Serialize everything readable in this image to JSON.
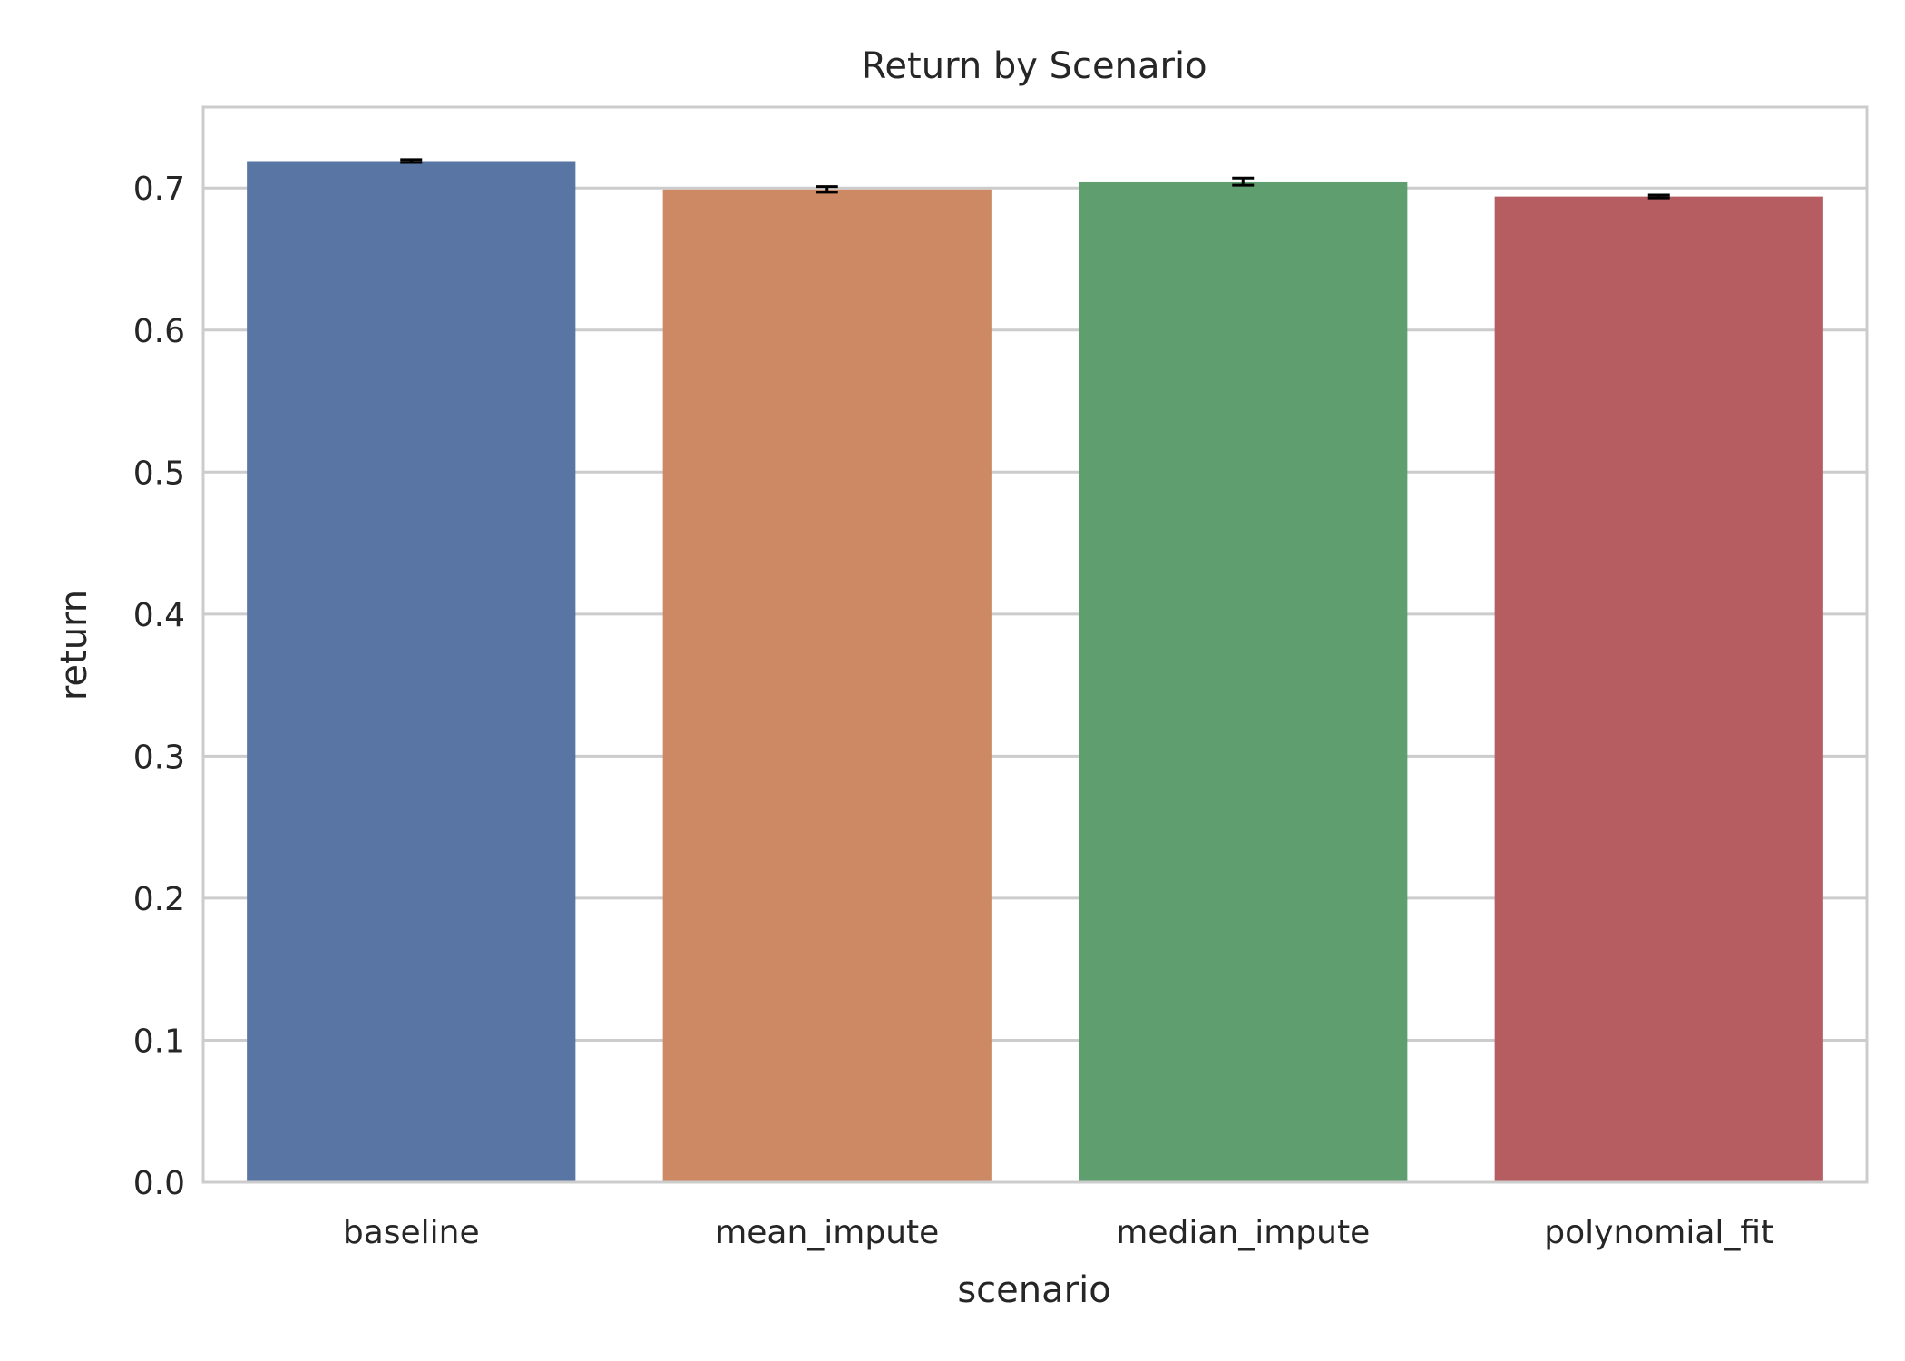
{
  "chart_data": {
    "type": "bar",
    "title": "Return by Scenario",
    "xlabel": "scenario",
    "ylabel": "return",
    "categories": [
      "baseline",
      "mean_impute",
      "median_impute",
      "polynomial_fit"
    ],
    "values": [
      0.719,
      0.699,
      0.704,
      0.694
    ],
    "error_low": [
      0.718,
      0.697,
      0.702,
      0.693
    ],
    "error_high": [
      0.72,
      0.701,
      0.707,
      0.695
    ],
    "colors": [
      "#5975a4",
      "#cc8963",
      "#5f9e6e",
      "#b55d60"
    ],
    "ylim": [
      0,
      0.757
    ],
    "yticks": [
      0.0,
      0.1,
      0.2,
      0.3,
      0.4,
      0.5,
      0.6,
      0.7
    ],
    "grid": true,
    "legend": "none"
  }
}
